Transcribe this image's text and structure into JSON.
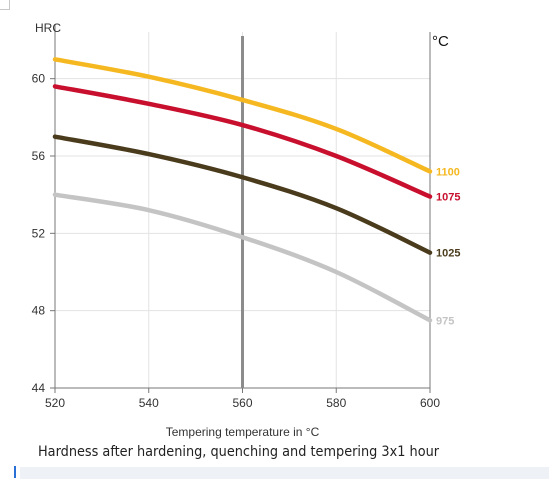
{
  "chart_data": {
    "type": "line",
    "xlabel": "Tempering temperature in °C",
    "ylabel": "HRC",
    "unit_label": "°C",
    "xlim": [
      520,
      600
    ],
    "ylim": [
      44,
      62
    ],
    "x_ticks": [
      520,
      540,
      560,
      580,
      600
    ],
    "y_ticks": [
      44,
      48,
      52,
      56,
      60
    ],
    "grid": true,
    "marker_x": 560,
    "series": [
      {
        "name": "1100",
        "color": "#f5b820",
        "x": [
          520,
          540,
          560,
          580,
          600
        ],
        "values": [
          61.0,
          60.1,
          58.9,
          57.4,
          55.2
        ]
      },
      {
        "name": "1075",
        "color": "#c8102e",
        "x": [
          520,
          540,
          560,
          580,
          600
        ],
        "values": [
          59.6,
          58.7,
          57.6,
          56.0,
          53.9
        ]
      },
      {
        "name": "1025",
        "color": "#4a3b1c",
        "x": [
          520,
          540,
          560,
          580,
          600
        ],
        "values": [
          57.0,
          56.1,
          54.9,
          53.3,
          51.0
        ]
      },
      {
        "name": "975",
        "color": "#c4c4c4",
        "x": [
          520,
          540,
          560,
          580,
          600
        ],
        "values": [
          54.0,
          53.2,
          51.8,
          50.0,
          47.5
        ]
      }
    ]
  },
  "caption": "Hardness after hardening, quenching and tempering  3x1 hour"
}
